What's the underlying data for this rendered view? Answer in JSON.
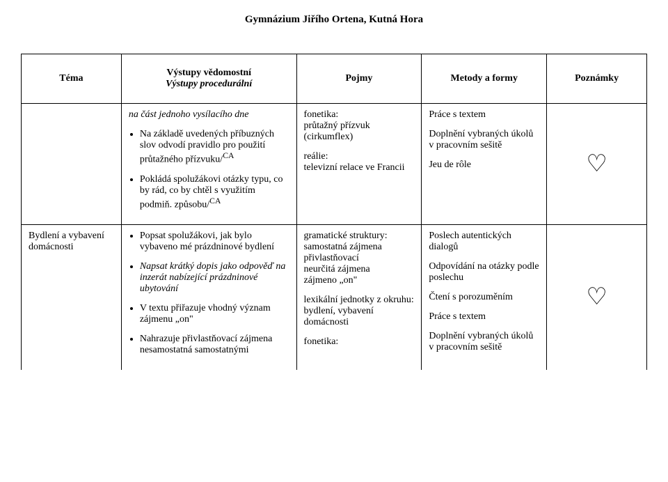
{
  "header": "Gymnázium Jiřího Ortena, Kutná Hora",
  "columns": {
    "tema": "Téma",
    "vystupy_line1": "Výstupy vědomostní",
    "vystupy_line2": "Výstupy procedurální",
    "pojmy": "Pojmy",
    "metody": "Metody a formy",
    "poznamky": "Poznámky"
  },
  "row1": {
    "vystupy": {
      "intro_italic": "na část jednoho vysílacího dne",
      "b1_pre": "Na základě uvedených příbuzných slov odvodí pravidlo pro použití průtažného přízvuku/",
      "b1_sup": "CA",
      "b2_pre": "Pokládá spolužákovi otázky typu, co by rád, co by chtěl s využitím podmiň. způsobu/",
      "b2_sup": "CA"
    },
    "pojmy": {
      "l1": "fonetika:",
      "l2": "průtažný přízvuk (cirkumflex)",
      "l3": "reálie:",
      "l4": "televizní relace ve Francii"
    },
    "metody": {
      "m1": "Práce s textem",
      "m2": "Doplnění vybraných úkolů v pracovním sešitě",
      "m3": "Jeu de rôle"
    },
    "poznamky_symbol": "♡"
  },
  "row2": {
    "tema": "Bydlení a vybavení domácnosti",
    "vystupy": {
      "b1": "Popsat spolužákovi, jak bylo vybaveno  mé prázdninové bydlení",
      "b2_italic": "Napsat krátký dopis jako odpověď na inzerát nabízející prázdninové ubytování",
      "b3": "V textu přiřazuje vhodný význam zájmenu „on\"",
      "b4": "Nahrazuje přivlastňovací zájmena nesamostatná samostatnými"
    },
    "pojmy": {
      "l1": "gramatické struktury:",
      "l2": "samostatná zájmena přivlastňovací",
      "l3": "neurčitá zájmena",
      "l4": "zájmeno „on\"",
      "l5": "lexikální jednotky z okruhu:",
      "l6": "bydlení, vybavení domácnosti",
      "l7": "fonetika:"
    },
    "metody": {
      "m1": "Poslech autentických dialogů",
      "m2": "Odpovídání na otázky podle poslechu",
      "m3": "Čtení s porozuměním",
      "m4": "Práce s textem",
      "m5": "Doplnění vybraných úkolů v pracovním sešitě"
    },
    "poznamky_symbol": "♡"
  },
  "colors": {
    "text": "#000000",
    "bg": "#ffffff",
    "border": "#000000"
  }
}
